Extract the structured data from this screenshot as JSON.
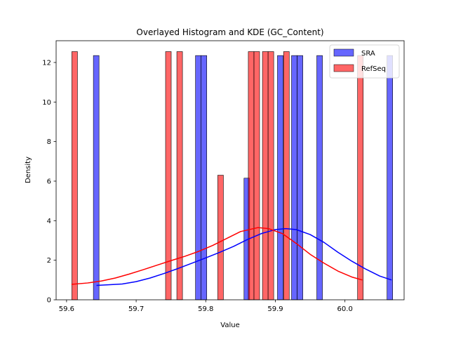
{
  "chart_data": {
    "type": "histogram",
    "title": "Overlayed Histogram and KDE (GC_Content)",
    "xlabel": "Value",
    "ylabel": "Density",
    "xlim": [
      59.585,
      60.085
    ],
    "ylim": [
      0,
      13.1
    ],
    "xticks": [
      "59.6",
      "59.7",
      "59.8",
      "59.9",
      "60.0"
    ],
    "xtick_values": [
      59.6,
      59.7,
      59.8,
      59.9,
      60.0
    ],
    "yticks": [
      "0",
      "2",
      "4",
      "6",
      "8",
      "10",
      "12"
    ],
    "ytick_values": [
      0,
      2,
      4,
      6,
      8,
      10,
      12
    ],
    "grid": false,
    "legend_position": "top-right",
    "series": [
      {
        "name": "SRA",
        "color": "#0000ff",
        "bar_width": 0.0081,
        "bars": [
          {
            "x": 59.6426,
            "height": 12.35
          },
          {
            "x": 59.7893,
            "height": 12.35
          },
          {
            "x": 59.7974,
            "height": 12.35
          },
          {
            "x": 59.859,
            "height": 6.15
          },
          {
            "x": 59.9071,
            "height": 12.35
          },
          {
            "x": 59.9273,
            "height": 12.35
          },
          {
            "x": 59.9354,
            "height": 12.35
          },
          {
            "x": 59.9636,
            "height": 12.35
          },
          {
            "x": 60.0645,
            "height": 12.35
          }
        ],
        "kde": [
          {
            "x": 59.643,
            "y": 0.73
          },
          {
            "x": 59.66,
            "y": 0.76
          },
          {
            "x": 59.68,
            "y": 0.8
          },
          {
            "x": 59.7,
            "y": 0.92
          },
          {
            "x": 59.72,
            "y": 1.1
          },
          {
            "x": 59.74,
            "y": 1.33
          },
          {
            "x": 59.76,
            "y": 1.58
          },
          {
            "x": 59.78,
            "y": 1.85
          },
          {
            "x": 59.8,
            "y": 2.12
          },
          {
            "x": 59.82,
            "y": 2.4
          },
          {
            "x": 59.84,
            "y": 2.7
          },
          {
            "x": 59.86,
            "y": 3.05
          },
          {
            "x": 59.88,
            "y": 3.35
          },
          {
            "x": 59.9,
            "y": 3.55
          },
          {
            "x": 59.915,
            "y": 3.6
          },
          {
            "x": 59.93,
            "y": 3.55
          },
          {
            "x": 59.95,
            "y": 3.3
          },
          {
            "x": 59.97,
            "y": 2.9
          },
          {
            "x": 59.99,
            "y": 2.4
          },
          {
            "x": 60.01,
            "y": 1.95
          },
          {
            "x": 60.03,
            "y": 1.55
          },
          {
            "x": 60.05,
            "y": 1.2
          },
          {
            "x": 60.067,
            "y": 1.0
          }
        ]
      },
      {
        "name": "RefSeq",
        "color": "#ff0000",
        "bar_width": 0.0081,
        "bars": [
          {
            "x": 59.6116,
            "height": 12.55
          },
          {
            "x": 59.7463,
            "height": 12.55
          },
          {
            "x": 59.7625,
            "height": 12.55
          },
          {
            "x": 59.8213,
            "height": 6.3
          },
          {
            "x": 59.8652,
            "height": 12.55
          },
          {
            "x": 59.8733,
            "height": 12.55
          },
          {
            "x": 59.8855,
            "height": 12.55
          },
          {
            "x": 59.8936,
            "height": 12.55
          },
          {
            "x": 59.9159,
            "height": 12.55
          },
          {
            "x": 60.0222,
            "height": 12.35
          }
        ],
        "kde": [
          {
            "x": 59.607,
            "y": 0.78
          },
          {
            "x": 59.63,
            "y": 0.85
          },
          {
            "x": 59.65,
            "y": 0.95
          },
          {
            "x": 59.67,
            "y": 1.1
          },
          {
            "x": 59.69,
            "y": 1.3
          },
          {
            "x": 59.71,
            "y": 1.52
          },
          {
            "x": 59.73,
            "y": 1.75
          },
          {
            "x": 59.75,
            "y": 1.98
          },
          {
            "x": 59.77,
            "y": 2.2
          },
          {
            "x": 59.79,
            "y": 2.45
          },
          {
            "x": 59.81,
            "y": 2.75
          },
          {
            "x": 59.83,
            "y": 3.1
          },
          {
            "x": 59.85,
            "y": 3.45
          },
          {
            "x": 59.875,
            "y": 3.65
          },
          {
            "x": 59.89,
            "y": 3.6
          },
          {
            "x": 59.91,
            "y": 3.35
          },
          {
            "x": 59.93,
            "y": 2.85
          },
          {
            "x": 59.95,
            "y": 2.3
          },
          {
            "x": 59.97,
            "y": 1.85
          },
          {
            "x": 59.99,
            "y": 1.45
          },
          {
            "x": 60.01,
            "y": 1.15
          },
          {
            "x": 60.025,
            "y": 1.0
          }
        ]
      }
    ]
  }
}
